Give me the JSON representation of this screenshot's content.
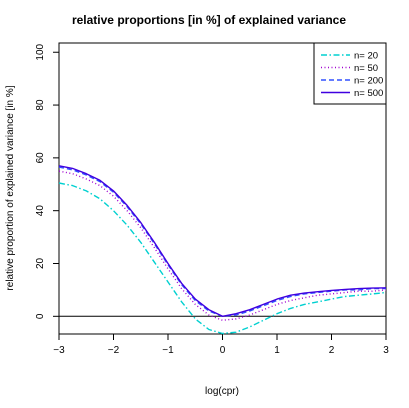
{
  "chart_data": {
    "type": "line",
    "title": "relative proportions [in %] of explained variance",
    "xlabel": "log(cpr)",
    "ylabel": "relative proportion of explained variance [in %]",
    "xlim": [
      -3,
      3
    ],
    "ylim": [
      -6.7,
      103.5
    ],
    "x_ticks": [
      -3,
      -2,
      -1,
      0,
      1,
      2,
      3
    ],
    "y_ticks": [
      0,
      20,
      40,
      60,
      80,
      100
    ],
    "reference_line": 0,
    "legend_position": "top-right",
    "x": [
      -3,
      -2.75,
      -2.5,
      -2.25,
      -2,
      -1.75,
      -1.5,
      -1.25,
      -1,
      -0.75,
      -0.5,
      -0.25,
      0,
      0.25,
      0.5,
      0.75,
      1,
      1.25,
      1.5,
      1.75,
      2,
      2.25,
      2.5,
      2.75,
      3
    ],
    "series": [
      {
        "name": "n= 20",
        "color": "#00d0d0",
        "dash": "dashdot",
        "values": [
          50.5,
          49.5,
          47.5,
          44.5,
          40,
          34.5,
          28,
          20.5,
          13,
          5.5,
          -1,
          -5,
          -6.5,
          -6,
          -4,
          -1.5,
          1,
          3,
          4.5,
          5.5,
          6.5,
          7.5,
          8,
          8.5,
          9
        ]
      },
      {
        "name": "n= 50",
        "color": "#a000d0",
        "dash": "dotted",
        "values": [
          55,
          54,
          52,
          49.5,
          45.5,
          40,
          33.5,
          26,
          18,
          10.5,
          4.5,
          0.5,
          -1.5,
          -1,
          0.5,
          2.5,
          4.5,
          6,
          7,
          8,
          8.5,
          9,
          9.5,
          9.5,
          10
        ]
      },
      {
        "name": "n= 200",
        "color": "#3050ff",
        "dash": "dashed",
        "values": [
          56.5,
          55.5,
          53.5,
          51,
          47,
          41.5,
          35,
          27.5,
          19.5,
          12,
          6,
          2,
          0,
          0.5,
          2,
          4,
          6,
          7.5,
          8.5,
          9,
          9.5,
          10,
          10,
          10.5,
          10.5
        ]
      },
      {
        "name": "n= 500",
        "color": "#4000e0",
        "dash": "solid",
        "values": [
          57,
          56,
          54,
          51.5,
          47.5,
          42,
          35.5,
          28,
          20,
          12.5,
          6.5,
          2.5,
          0,
          1,
          2.5,
          4.5,
          6.5,
          8,
          8.8,
          9.3,
          9.8,
          10.2,
          10.5,
          10.7,
          10.8
        ]
      }
    ]
  }
}
